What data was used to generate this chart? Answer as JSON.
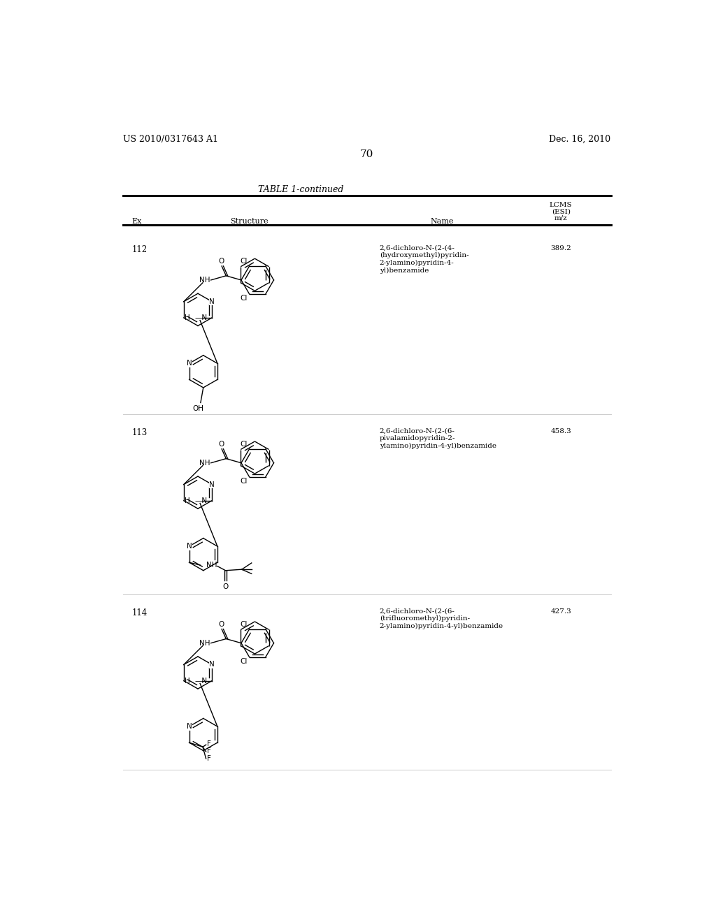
{
  "page_header_left": "US 2010/0317643 A1",
  "page_header_right": "Dec. 16, 2010",
  "page_number": "70",
  "table_title": "TABLE 1-continued",
  "background_color": "#ffffff",
  "text_color": "#000000",
  "entries": [
    {
      "ex": "112",
      "name": "2,6-dichloro-N-(2-(4-\n(hydroxymethyl)pyridin-\n2-ylamino)pyridin-4-\nyl)benzamide",
      "mz": "389.2"
    },
    {
      "ex": "113",
      "name": "2,6-dichloro-N-(2-(6-\npivalamidopyridin-2-\nylamino)pyridin-4-yl)benzamide",
      "mz": "458.3"
    },
    {
      "ex": "114",
      "name": "2,6-dichloro-N-(2-(6-\n(trifluoromethyl)pyridin-\n2-ylamino)pyridin-4-yl)benzamide",
      "mz": "427.3"
    }
  ]
}
